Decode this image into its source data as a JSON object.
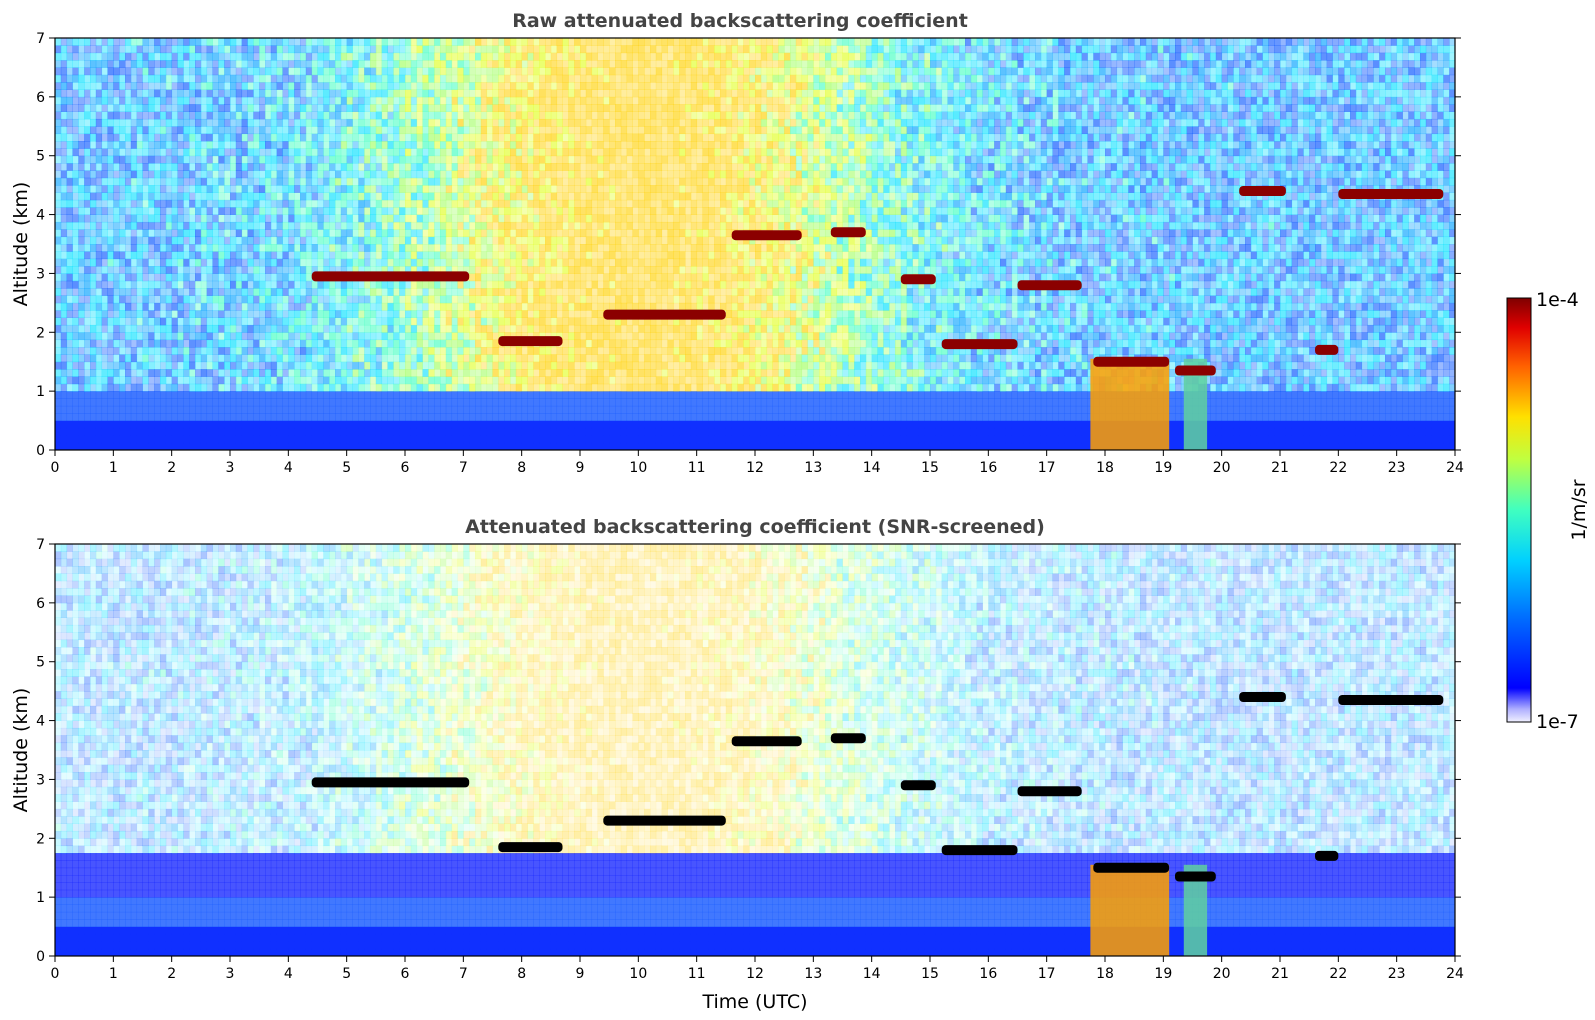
{
  "chart_data": [
    {
      "type": "heatmap",
      "title": "Raw attenuated backscattering coefficient",
      "xlabel": "",
      "ylabel": "Altitude (km)",
      "xlim": [
        0,
        24
      ],
      "ylim": [
        0,
        7
      ],
      "x_ticks": [
        "0",
        "1",
        "2",
        "3",
        "4",
        "5",
        "6",
        "7",
        "8",
        "9",
        "10",
        "11",
        "12",
        "13",
        "14",
        "15",
        "16",
        "17",
        "18",
        "19",
        "20",
        "21",
        "22",
        "23",
        "24"
      ],
      "y_ticks": [
        "0",
        "1",
        "2",
        "3",
        "4",
        "5",
        "6",
        "7"
      ],
      "cloud_layers_km": [
        {
          "t_start": 4.4,
          "t_end": 7.1,
          "alt": 2.95
        },
        {
          "t_start": 7.6,
          "t_end": 8.7,
          "alt": 1.85
        },
        {
          "t_start": 9.4,
          "t_end": 11.5,
          "alt": 2.3
        },
        {
          "t_start": 11.6,
          "t_end": 12.8,
          "alt": 3.65
        },
        {
          "t_start": 13.3,
          "t_end": 13.9,
          "alt": 3.7
        },
        {
          "t_start": 14.5,
          "t_end": 15.1,
          "alt": 2.9
        },
        {
          "t_start": 15.2,
          "t_end": 16.5,
          "alt": 1.8
        },
        {
          "t_start": 16.5,
          "t_end": 17.6,
          "alt": 2.8
        },
        {
          "t_start": 17.8,
          "t_end": 19.1,
          "alt": 1.5
        },
        {
          "t_start": 19.2,
          "t_end": 19.9,
          "alt": 1.35
        },
        {
          "t_start": 20.3,
          "t_end": 21.1,
          "alt": 4.4
        },
        {
          "t_start": 21.6,
          "t_end": 22.0,
          "alt": 1.7
        },
        {
          "t_start": 22.0,
          "t_end": 23.8,
          "alt": 4.35
        }
      ]
    },
    {
      "type": "heatmap",
      "title": "Attenuated backscattering coefficient (SNR-screened)",
      "xlabel": "Time (UTC)",
      "ylabel": "Altitude (km)",
      "xlim": [
        0,
        24
      ],
      "ylim": [
        0,
        7
      ],
      "x_ticks": [
        "0",
        "1",
        "2",
        "3",
        "4",
        "5",
        "6",
        "7",
        "8",
        "9",
        "10",
        "11",
        "12",
        "13",
        "14",
        "15",
        "16",
        "17",
        "18",
        "19",
        "20",
        "21",
        "22",
        "23",
        "24"
      ],
      "y_ticks": [
        "0",
        "1",
        "2",
        "3",
        "4",
        "5",
        "6",
        "7"
      ]
    }
  ],
  "colorbar": {
    "max_label": "1e-4",
    "min_label": "1e-7",
    "unit_label": "1/m/sr",
    "colormap": "jet"
  },
  "colors": {
    "title_color": "#444444",
    "cloud_raw": "#8b0000",
    "cloud_screened": "#000000",
    "boundary_layer": "#0000ff"
  }
}
